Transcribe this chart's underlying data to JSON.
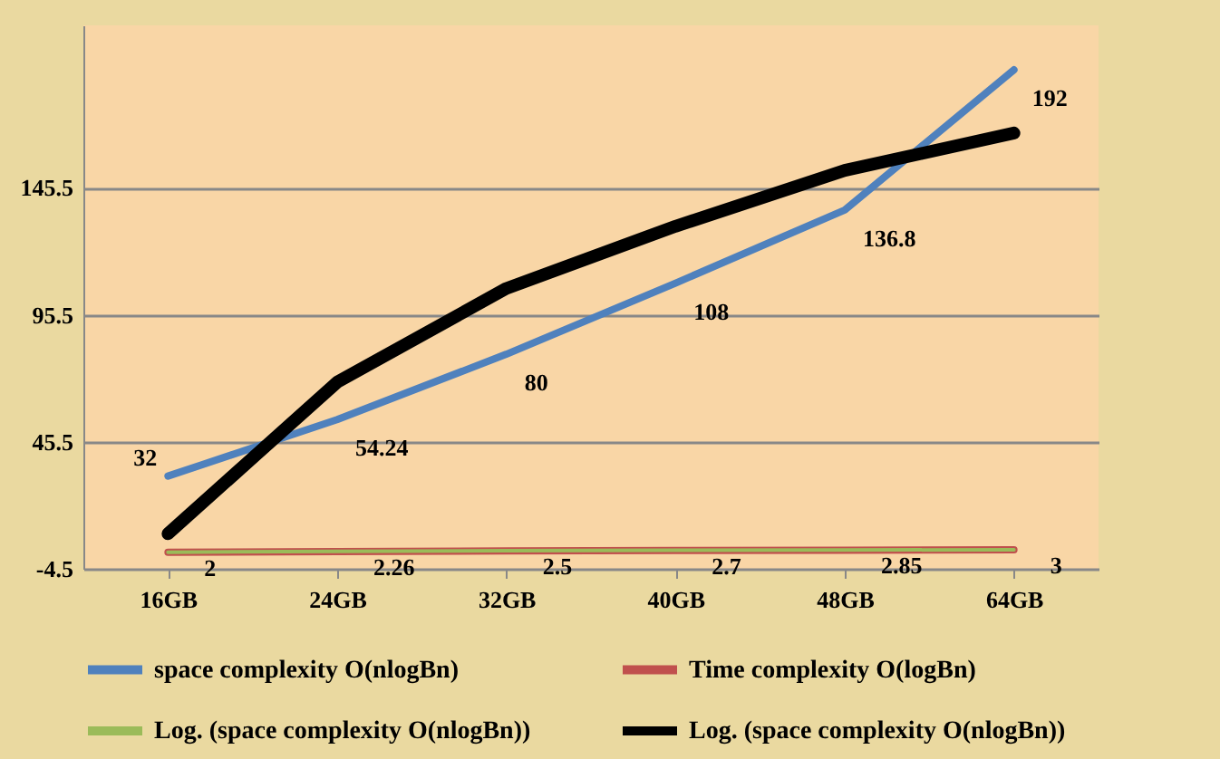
{
  "chart_data": {
    "type": "line",
    "categories": [
      "16GB",
      "24GB",
      "32GB",
      "40GB",
      "48GB",
      "64GB"
    ],
    "series": [
      {
        "name": "space complexity O(nlogBn)",
        "color": "#4f81bd",
        "values": [
          32,
          54.24,
          80,
          108,
          136.8,
          192
        ],
        "value_labels": [
          "32",
          "54.24",
          "80",
          "108",
          "136.8",
          "192"
        ]
      },
      {
        "name": "Time complexity O(logBn)",
        "color": "#c0504d",
        "values": [
          2,
          2.26,
          2.5,
          2.7,
          2.85,
          3
        ],
        "value_labels": [
          "2",
          "2.26",
          "2.5",
          "2.7",
          "2.85",
          "3"
        ]
      },
      {
        "name": "Log. (space complexity O(nlogBn))",
        "color": "#9bbb59",
        "values": [
          2,
          2.4,
          2.6,
          2.8,
          2.9,
          3
        ]
      },
      {
        "name": "Log. (space complexity O(nlogBn))",
        "color": "#000000",
        "values": [
          9.3,
          69,
          105.9,
          130.4,
          152.4,
          167.1
        ]
      }
    ],
    "ylim": [
      -4.5,
      209.5
    ],
    "yticks": [
      -4.5,
      45.5,
      95.5,
      145.5
    ],
    "grid": "y",
    "legend": "bottom",
    "marker": "none",
    "line_style": "solid"
  }
}
